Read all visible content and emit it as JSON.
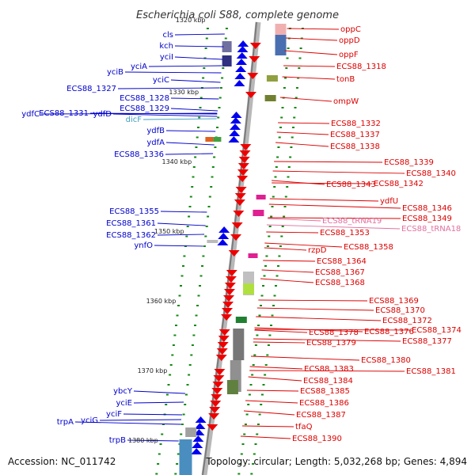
{
  "title": "Escherichia coli S88, complete genome",
  "footer": {
    "accession": "Accession: NC_011742",
    "summary": "Topology: circular; Length: 5,032,268 bp; Genes: 4,894"
  },
  "colors": {
    "forward_gene": "#0000ee",
    "reverse_gene": "#ee0000",
    "left_label": "#0000cc",
    "right_label": "#dd0000",
    "rna_label": "#e070a0",
    "backbone": "#999999",
    "tick": "#118811"
  },
  "scale_labels": [
    "1320 kbp",
    "1330 kbp",
    "1340 kbp",
    "1350 kbp",
    "1360 kbp",
    "1370 kbp",
    "1380 kbp"
  ],
  "left_genes": [
    "cls",
    "kch",
    "yciI",
    "yciA",
    "yciB",
    "yciC",
    "ECS88_1327",
    "ECS88_1328",
    "ECS88_1329",
    "ydfC",
    "ECS88_1331",
    "ydfD",
    "dicF",
    "ydfB",
    "ydfA",
    "ECS88_1336",
    "ECS88_1355",
    "ECS88_1361",
    "ECS88_1362",
    "ynfO",
    "ybcY",
    "yciE",
    "yciF",
    "trpA",
    "yciG",
    "trpB"
  ],
  "right_genes": [
    "oppC",
    "oppD",
    "oppF",
    "ECS88_1318",
    "tonB",
    "ompW",
    "ECS88_1332",
    "ECS88_1337",
    "ECS88_1338",
    "ECS88_1339",
    "ECS88_1340",
    "ECS88_1343",
    "ECS88_1342",
    "ydfU",
    "ECS88_1346",
    "ECS88_1349",
    "ECS88_tRNA19",
    "ECS88_tRNA18",
    "ECS88_1353",
    "rzpD",
    "ECS88_1358",
    "ECS88_1364",
    "ECS88_1367",
    "ECS88_1368",
    "ECS88_1369",
    "ECS88_1370",
    "ECS88_1372",
    "ECS88_1374",
    "ECS88_1378",
    "ECS88_1376",
    "ECS88_1379",
    "ECS88_1377",
    "ECS88_1380",
    "ECS88_1381",
    "ECS88_1383",
    "ECS88_1384",
    "ECS88_1385",
    "ECS88_1386",
    "ECS88_1387",
    "tfaQ",
    "ECS88_1390"
  ]
}
